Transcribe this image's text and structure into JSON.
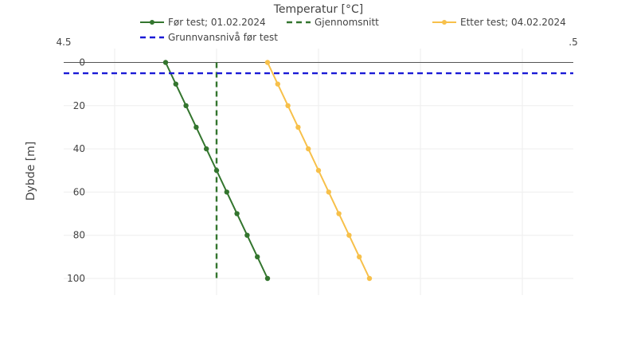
{
  "chart_data": {
    "type": "line",
    "title": "",
    "xlabel": "Temperatur [°C]",
    "ylabel": "Dybde [m]",
    "xlim": [
      4.5,
      9.5
    ],
    "ylim": [
      107,
      0
    ],
    "x_axis_position": "top",
    "y_reversed": true,
    "grid": true,
    "legend_position": "top",
    "x_tick_labels": [
      "4.5",
      ".5"
    ],
    "y_ticks": [
      0,
      20,
      40,
      60,
      80,
      100
    ],
    "y_tick_labels": [
      "0",
      "20",
      "40",
      "60",
      "80",
      "100"
    ],
    "series": [
      {
        "name": "Før test; 01.02.2024",
        "color": "#33752e",
        "style": "solid-markers",
        "x": [
          5.5,
          5.6,
          5.7,
          5.8,
          5.9,
          6.0,
          6.1,
          6.2,
          6.3,
          6.4,
          6.5
        ],
        "y": [
          0,
          10,
          20,
          30,
          40,
          50,
          60,
          70,
          80,
          90,
          100
        ]
      },
      {
        "name": "Gjennomsnitt",
        "color": "#33752e",
        "style": "dash",
        "x": [
          6.0,
          6.0
        ],
        "y": [
          0,
          100
        ]
      },
      {
        "name": "Etter test; 04.02.2024",
        "color": "#f7c04a",
        "style": "solid-markers",
        "x": [
          6.5,
          6.6,
          6.7,
          6.8,
          6.9,
          7.0,
          7.1,
          7.2,
          7.3,
          7.4,
          7.5
        ],
        "y": [
          0,
          10,
          20,
          30,
          40,
          50,
          60,
          70,
          80,
          90,
          100
        ]
      },
      {
        "name": "Grunnvansnivå før test",
        "color": "#1a1ad6",
        "style": "dash",
        "x": [
          4.5,
          9.5
        ],
        "y": [
          5,
          5
        ]
      }
    ]
  }
}
